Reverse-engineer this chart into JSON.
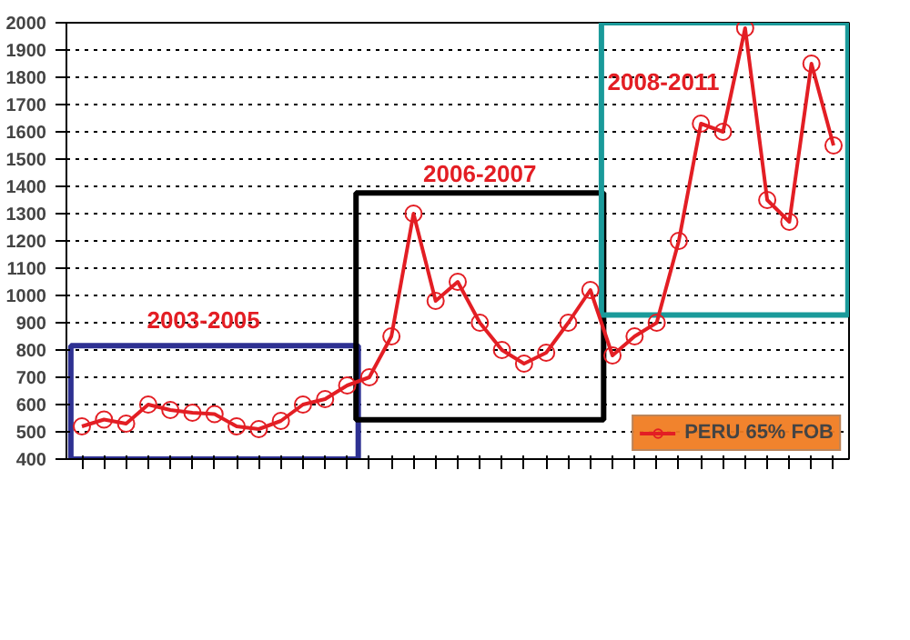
{
  "chart_data": {
    "type": "line",
    "categories": [
      null,
      null,
      null,
      null,
      null,
      null,
      null,
      null,
      null,
      null,
      null,
      null,
      null,
      null,
      null,
      null,
      null,
      null,
      null,
      null,
      null,
      null,
      null,
      null,
      null,
      null,
      null,
      null,
      null,
      null,
      null,
      null,
      null,
      null,
      null
    ],
    "series": [
      {
        "name": "PERU 65% FOB",
        "color": "#e31e24",
        "values": [
          520,
          545,
          530,
          600,
          580,
          570,
          565,
          520,
          510,
          540,
          600,
          620,
          670,
          700,
          850,
          1300,
          980,
          1050,
          900,
          800,
          750,
          790,
          900,
          1020,
          780,
          850,
          900,
          1200,
          1630,
          1600,
          1980,
          1350,
          1270,
          1850,
          1550
        ]
      }
    ],
    "ylim": [
      400,
      2000
    ],
    "yticks": [
      400,
      500,
      600,
      700,
      800,
      900,
      1000,
      1100,
      1200,
      1300,
      1400,
      1500,
      1600,
      1700,
      1800,
      1900,
      2000
    ],
    "annotations": [
      "2003-2005",
      "2006-2007",
      "2008-2011"
    ],
    "grid": "y",
    "legend": "bottom right",
    "marker": "circle",
    "line_style": "solid"
  }
}
